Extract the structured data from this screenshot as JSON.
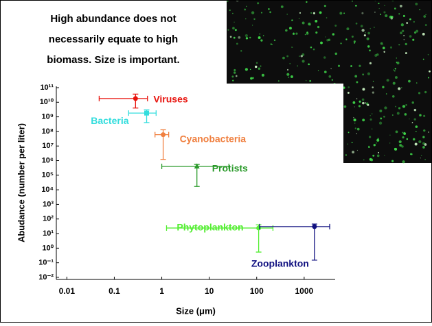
{
  "chart_data": {
    "type": "scatter",
    "title": [
      "High abundance does not",
      "necessarily equate to high",
      "biomass.  Size is important."
    ],
    "x_label": "Size (μm)",
    "y_label": "Abudance (number per liter)",
    "xlog": true,
    "ylog": true,
    "xlim": [
      0.006,
      4500
    ],
    "ylim": [
      0.0072,
      124000000000
    ],
    "xticks": [
      0.01,
      0.1,
      1,
      10,
      100,
      1000
    ],
    "yticks": [
      {
        "value": 100000000000,
        "label": "10¹¹"
      },
      {
        "value": 10000000000,
        "label": "10¹⁰"
      },
      {
        "value": 1000000000,
        "label": "10⁹"
      },
      {
        "value": 100000000,
        "label": "10⁸"
      },
      {
        "value": 10000000,
        "label": "10⁷"
      },
      {
        "value": 1000000,
        "label": "10⁶"
      },
      {
        "value": 100000,
        "label": "10⁵"
      },
      {
        "value": 10000,
        "label": "10⁴"
      },
      {
        "value": 1000,
        "label": "10³"
      },
      {
        "value": 100,
        "label": "10²"
      },
      {
        "value": 10,
        "label": "10¹"
      },
      {
        "value": 1,
        "label": "10⁰"
      },
      {
        "value": 0.1,
        "label": "10⁻¹"
      },
      {
        "value": 0.01,
        "label": "10⁻²"
      }
    ],
    "series": [
      {
        "name": "Viruses",
        "color": "#e8120c",
        "marker": "circle",
        "x": 0.28,
        "y": 18000000000,
        "x_low": 0.048,
        "x_high": 0.5,
        "y_low": 4000000000,
        "y_high": 36000000000
      },
      {
        "name": "Bacteria",
        "color": "#33dddd",
        "marker": "square",
        "x": 0.48,
        "y": 1800000000,
        "x_low": 0.2,
        "x_high": 0.76,
        "y_low": 400000000,
        "y_high": 3000000000
      },
      {
        "name": "Cyanobacteria",
        "color": "#f08040",
        "marker": "circle",
        "x": 1.07,
        "y": 60000000,
        "x_low": 0.72,
        "x_high": 1.4,
        "y_low": 1200000,
        "y_high": 130000000
      },
      {
        "name": "Protists",
        "color": "#2a9a2a",
        "marker": "triangle",
        "x": 5.5,
        "y": 400000,
        "x_low": 1,
        "x_high": 26,
        "y_low": 17000,
        "y_high": 550000
      },
      {
        "name": "Phytoplankton",
        "color": "#55ee33",
        "marker": "circle",
        "x": 110,
        "y": 24,
        "x_low": 1.26,
        "x_high": 220,
        "y_low": 0.54,
        "y_high": 40
      },
      {
        "name": "Zooplankton",
        "color": "#101080",
        "marker": "circle",
        "x": 1650,
        "y": 30,
        "x_low": 115,
        "x_high": 3450,
        "y_low": 0.15,
        "y_high": 45
      }
    ]
  }
}
